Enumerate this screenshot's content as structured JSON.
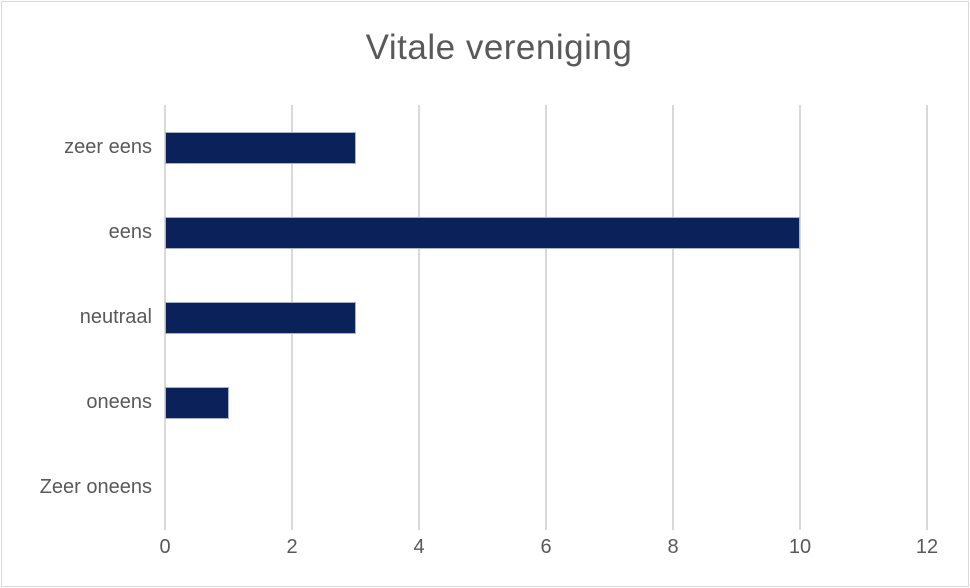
{
  "title": "Vitale vereniging",
  "colors": {
    "bar": "#0b2159",
    "bar_border": "#a9b2cb",
    "gridline": "#d9d9d9",
    "text": "#595959",
    "chart_border": "#d9d9d9",
    "background": "#ffffff"
  },
  "chart_data": {
    "type": "bar",
    "orientation": "horizontal",
    "title": "Vitale vereniging",
    "categories": [
      "zeer eens",
      "eens",
      "neutraal",
      "oneens",
      "Zeer oneens"
    ],
    "values": [
      3,
      10,
      3,
      1,
      0
    ],
    "xlabel": "",
    "ylabel": "",
    "xlim": [
      0,
      12
    ],
    "xticks": [
      0,
      2,
      4,
      6,
      8,
      10,
      12
    ],
    "grid": true,
    "legend": false
  }
}
